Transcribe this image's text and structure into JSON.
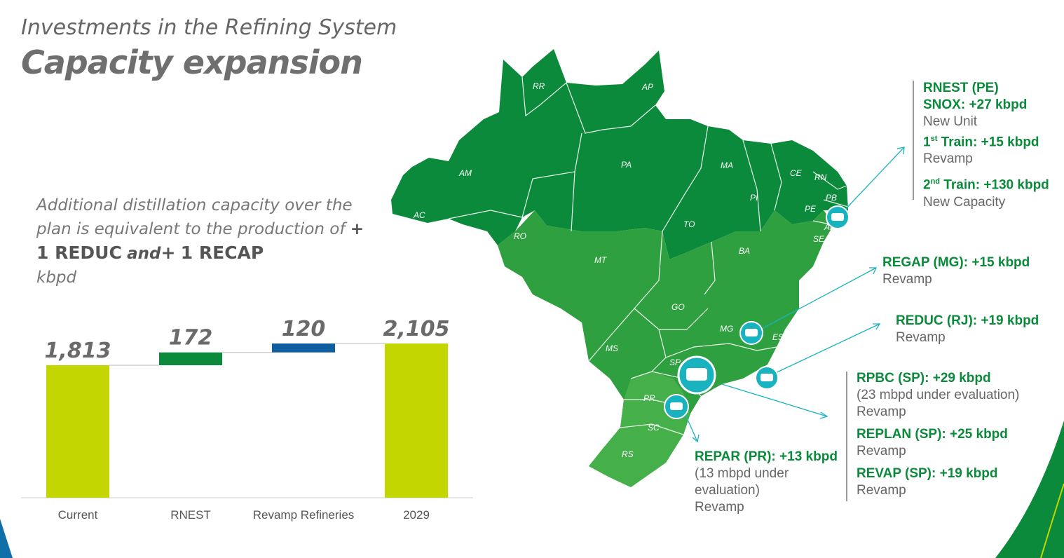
{
  "header": {
    "title": "Investments in the Refining System",
    "headline": "Capacity expansion"
  },
  "note": {
    "line1": "Additional distillation capacity over the plan is equivalent to the production of",
    "plus1": "+",
    "reduc": "1 REDUC",
    "and": "and",
    "plus2": "+",
    "recap": "1 RECAP",
    "unit": "kbpd"
  },
  "chart_data": {
    "type": "bar",
    "subtype": "waterfall",
    "categories": [
      "Current",
      "RNEST",
      "Revamp Refineries",
      "2029"
    ],
    "values": [
      1813,
      172,
      120,
      2105
    ],
    "value_labels": [
      "1,813",
      "172",
      "120",
      "2,105"
    ],
    "bar_kinds": [
      "total",
      "increment",
      "increment",
      "total"
    ],
    "colors": {
      "total": "#c3d600",
      "RNEST": "#0a8a3a",
      "Revamp Refineries": "#0f5fa0"
    },
    "unit": "kbpd",
    "grid": false
  },
  "map": {
    "states": [
      "RR",
      "AP",
      "AM",
      "PA",
      "MA",
      "CE",
      "RN",
      "PB",
      "PE",
      "AL",
      "SE",
      "PI",
      "AC",
      "RO",
      "TO",
      "BA",
      "MT",
      "GO",
      "MG",
      "ES",
      "MS",
      "SP",
      "PR",
      "SC",
      "RS"
    ],
    "colors": {
      "dark": "#0a8a3a",
      "light": "#3fae44",
      "marker": "#19b3c0"
    }
  },
  "callouts": {
    "rnest": {
      "title": "RNEST (PE)",
      "snox": "SNOX: +27 kbpd",
      "snox_note": "New Unit",
      "train1_pre": "1",
      "train1_sup": "st",
      "train1_post": " Train: +15 kbpd",
      "train1_note": "Revamp",
      "train2_pre": "2",
      "train2_sup": "nd",
      "train2_post": " Train: +130 kbpd",
      "train2_note": "New Capacity"
    },
    "regap": {
      "title": "REGAP (MG): +15 kbpd",
      "note": "Revamp"
    },
    "reduc": {
      "title": "REDUC (RJ): +19 kbpd",
      "note": "Revamp"
    },
    "rpbc": {
      "title": "RPBC (SP): +29 kbpd",
      "note1": "(23 mbpd under evaluation)",
      "note2": "Revamp"
    },
    "replan": {
      "title": "REPLAN (SP): +25 kbpd",
      "note": "Revamp"
    },
    "revap": {
      "title": "REVAP (SP): +19 kbpd",
      "note": "Revamp"
    },
    "repar": {
      "title": "REPAR (PR): +13 kbpd",
      "note1": " (13 mbpd under",
      "note2": "evaluation)",
      "note3": "Revamp"
    }
  }
}
